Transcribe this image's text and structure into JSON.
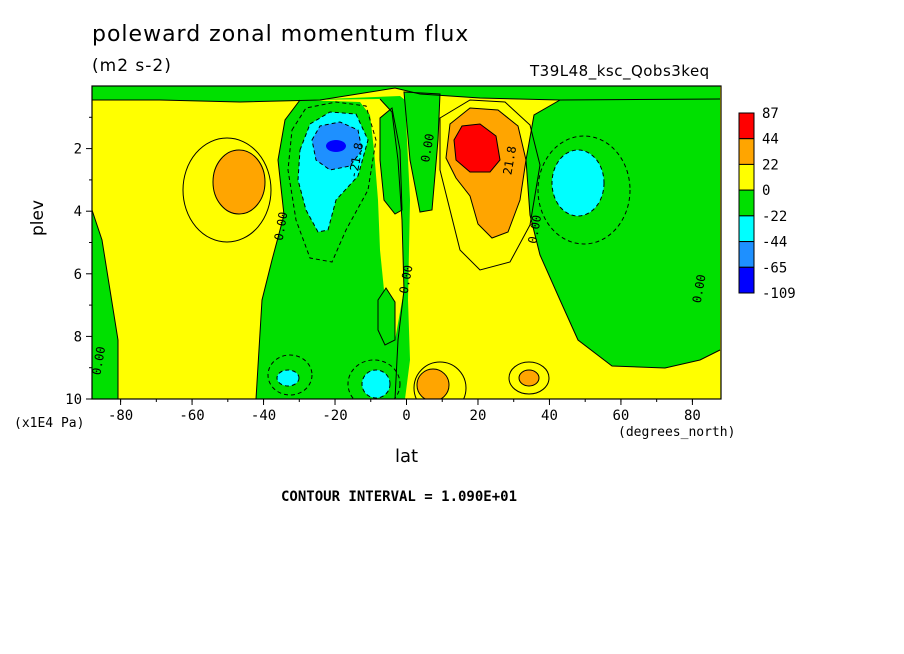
{
  "page": {
    "title": "poleward zonal momentum flux",
    "units": "(m2 s-2)",
    "run_name": "T39L48_ksc_Qobs3keq",
    "y_axis_label": "plev",
    "y_axis_units": "(x1E4 Pa)",
    "x_axis_label": "lat",
    "x_axis_units": "(degrees_north)",
    "contour_interval_text": "CONTOUR INTERVAL = 1.090E+01"
  },
  "chart_data": {
    "type": "heatmap",
    "title": "poleward zonal momentum flux",
    "subtitle": "(m2 s-2)",
    "xlabel": "lat",
    "xunits": "(degrees_north)",
    "ylabel": "plev",
    "yunits": "(x1E4 Pa)",
    "xlim": [
      -88,
      88
    ],
    "ylim": [
      10,
      0
    ],
    "x_ticks": [
      -80,
      -60,
      -40,
      -20,
      0,
      20,
      40,
      60,
      80
    ],
    "y_ticks": [
      2,
      4,
      6,
      8,
      10
    ],
    "contour_interval": 10.9,
    "colorbar": {
      "labels": [
        "87",
        "44",
        "22",
        "0",
        "-22",
        "-44",
        "-65",
        "-109"
      ],
      "colors": [
        "#ff0000",
        "#ffa500",
        "#ffff00",
        "#00e000",
        "#00ffff",
        "#1e90ff",
        "#0000ff"
      ],
      "class_ranges": [
        [
          44,
          87
        ],
        [
          22,
          44
        ],
        [
          0,
          22
        ],
        [
          -22,
          0
        ],
        [
          -44,
          -22
        ],
        [
          -65,
          -44
        ],
        [
          -109,
          -65
        ]
      ]
    },
    "contour_labels": [
      {
        "text": "0.00",
        "lat": -85,
        "plev": 8.8
      },
      {
        "text": "0.00",
        "lat": -34,
        "plev": 4.5
      },
      {
        "text": "-21.8",
        "lat": -13,
        "plev": 2.4
      },
      {
        "text": "0.00",
        "lat": 7,
        "plev": 2.0
      },
      {
        "text": "0.00",
        "lat": 1,
        "plev": 6.2
      },
      {
        "text": "21.8",
        "lat": 30,
        "plev": 2.4
      },
      {
        "text": "0.00",
        "lat": 37,
        "plev": 4.6
      },
      {
        "text": "0.00",
        "lat": 83,
        "plev": 6.5
      }
    ],
    "features": [
      {
        "sign": "negative",
        "center_lat": -19,
        "center_plev": 2.0,
        "peak_class": "-65 to -44"
      },
      {
        "sign": "positive",
        "center_lat": 19,
        "center_plev": 2.0,
        "peak_class": "44 to 87"
      },
      {
        "sign": "positive",
        "center_lat": -46,
        "center_plev": 3.0,
        "peak_class": "22 to 44"
      },
      {
        "sign": "negative",
        "center_lat": 47,
        "center_plev": 3.0,
        "peak_class": "-44 to -22"
      },
      {
        "sign": "positive",
        "center_lat": 7,
        "center_plev": 9.6,
        "peak_class": "22 to 44"
      },
      {
        "sign": "positive",
        "center_lat": 33,
        "center_plev": 9.2,
        "peak_class": "22 to 44"
      },
      {
        "sign": "negative",
        "center_lat": -33,
        "center_plev": 9.2,
        "peak_class": "-44 to -22"
      },
      {
        "sign": "negative",
        "center_lat": -8,
        "center_plev": 9.6,
        "peak_class": "-44 to -22"
      }
    ]
  }
}
